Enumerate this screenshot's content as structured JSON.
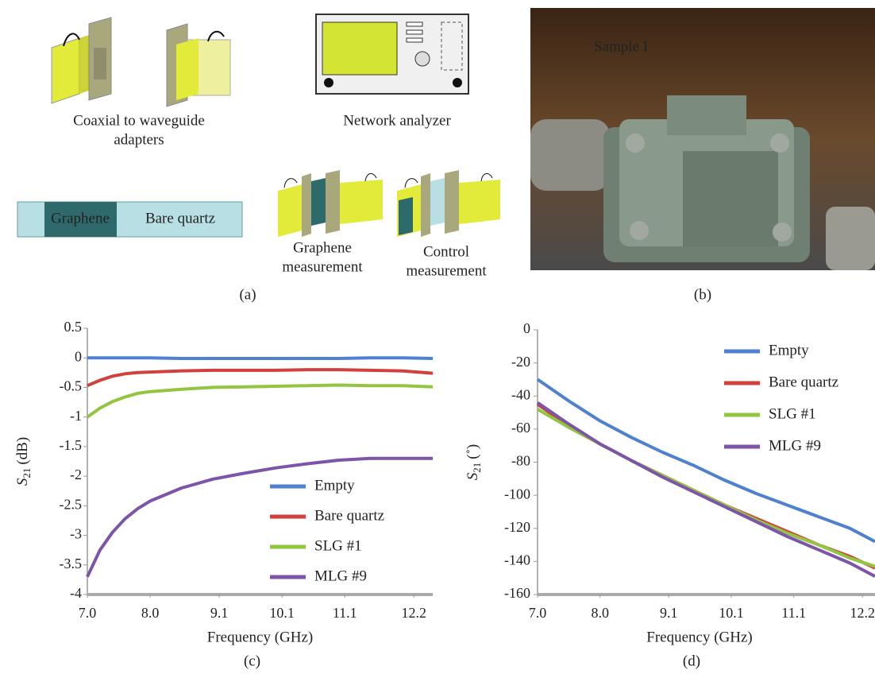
{
  "panel_a": {
    "adapters_label": [
      "Coaxial to waveguide",
      "adapters"
    ],
    "analyzer_label": "Network analyzer",
    "sample": {
      "graphene": "Graphene",
      "bare": "Bare quartz"
    },
    "graphene_measurement": [
      "Graphene",
      "measurement"
    ],
    "control_measurement": [
      "Control",
      "measurement"
    ],
    "caption": "(a)"
  },
  "panel_b": {
    "label": "Sample I",
    "caption": "(b)"
  },
  "chart_data": [
    {
      "type": "line",
      "caption": "(c)",
      "xlabel": "Frequency (GHz)",
      "ylabel": {
        "var": "S",
        "sub": "21",
        "unit": "(dB)"
      },
      "x": [
        7.0,
        7.2,
        7.4,
        7.6,
        7.8,
        8.0,
        8.5,
        9.0,
        9.5,
        10.0,
        10.5,
        11.0,
        11.5,
        12.0,
        12.5
      ],
      "xlim": [
        7,
        12.5
      ],
      "xticks": [
        {
          "value": 7,
          "label": "7.0"
        },
        {
          "value": 8,
          "label": "8.0"
        },
        9.1,
        10.1,
        11.1,
        12.2
      ],
      "ylim": [
        -4,
        0.5
      ],
      "yticks": [
        0.5,
        0,
        -0.5,
        -1,
        -1.5,
        -2,
        -2.5,
        -3,
        -3.5,
        -4
      ],
      "legend": "lower right",
      "series": [
        {
          "name": "Empty",
          "color": "#4f81d0",
          "values": [
            0,
            0,
            0,
            0,
            0,
            0,
            -0.01,
            -0.01,
            -0.01,
            -0.01,
            -0.01,
            -0.01,
            0,
            0,
            -0.01
          ]
        },
        {
          "name": "Bare quartz",
          "color": "#d0413e",
          "values": [
            -0.47,
            -0.38,
            -0.31,
            -0.27,
            -0.25,
            -0.24,
            -0.22,
            -0.21,
            -0.21,
            -0.21,
            -0.2,
            -0.2,
            -0.21,
            -0.22,
            -0.26
          ]
        },
        {
          "name": "SLG #1",
          "color": "#92c540",
          "values": [
            -1.0,
            -0.85,
            -0.74,
            -0.66,
            -0.6,
            -0.57,
            -0.53,
            -0.5,
            -0.49,
            -0.48,
            -0.47,
            -0.46,
            -0.47,
            -0.47,
            -0.49
          ]
        },
        {
          "name": "MLG #9",
          "color": "#7d55a8",
          "values": [
            -3.7,
            -3.25,
            -2.95,
            -2.72,
            -2.55,
            -2.42,
            -2.2,
            -2.05,
            -1.95,
            -1.86,
            -1.79,
            -1.73,
            -1.7,
            -1.7,
            -1.7
          ]
        }
      ]
    },
    {
      "type": "line",
      "caption": "(d)",
      "xlabel": "Frequency (GHz)",
      "ylabel": {
        "var": "S",
        "sub": "21",
        "unit": "(˚)"
      },
      "x": [
        7.0,
        7.5,
        8.0,
        8.5,
        9.0,
        9.5,
        10.0,
        10.5,
        11.0,
        11.5,
        12.0,
        12.4
      ],
      "xlim": [
        7,
        12.4
      ],
      "xticks": [
        {
          "value": 7,
          "label": "7.0"
        },
        {
          "value": 8,
          "label": "8.0"
        },
        9.1,
        10.1,
        11.1,
        12.2
      ],
      "ylim": [
        -160,
        0
      ],
      "yticks": [
        0,
        -20,
        -40,
        -60,
        -80,
        -100,
        -120,
        -140,
        -160
      ],
      "legend": "upper right",
      "series": [
        {
          "name": "Empty",
          "color": "#4f81d0",
          "values": [
            -30,
            -43,
            -55,
            -65,
            -74,
            -82,
            -91,
            -99,
            -106,
            -113,
            -120,
            -128
          ]
        },
        {
          "name": "Bare quartz",
          "color": "#d0413e",
          "values": [
            -45,
            -58,
            -69,
            -79,
            -88,
            -97,
            -106,
            -114,
            -122,
            -130,
            -137,
            -144
          ]
        },
        {
          "name": "SLG #1",
          "color": "#92c540",
          "values": [
            -48,
            -59,
            -69,
            -79,
            -88,
            -97,
            -106,
            -115,
            -123,
            -130,
            -138,
            -143
          ]
        },
        {
          "name": "MLG #9",
          "color": "#7d55a8",
          "values": [
            -44,
            -57,
            -69,
            -79,
            -89,
            -98,
            -107,
            -116,
            -125,
            -133,
            -141,
            -149
          ]
        }
      ]
    }
  ]
}
